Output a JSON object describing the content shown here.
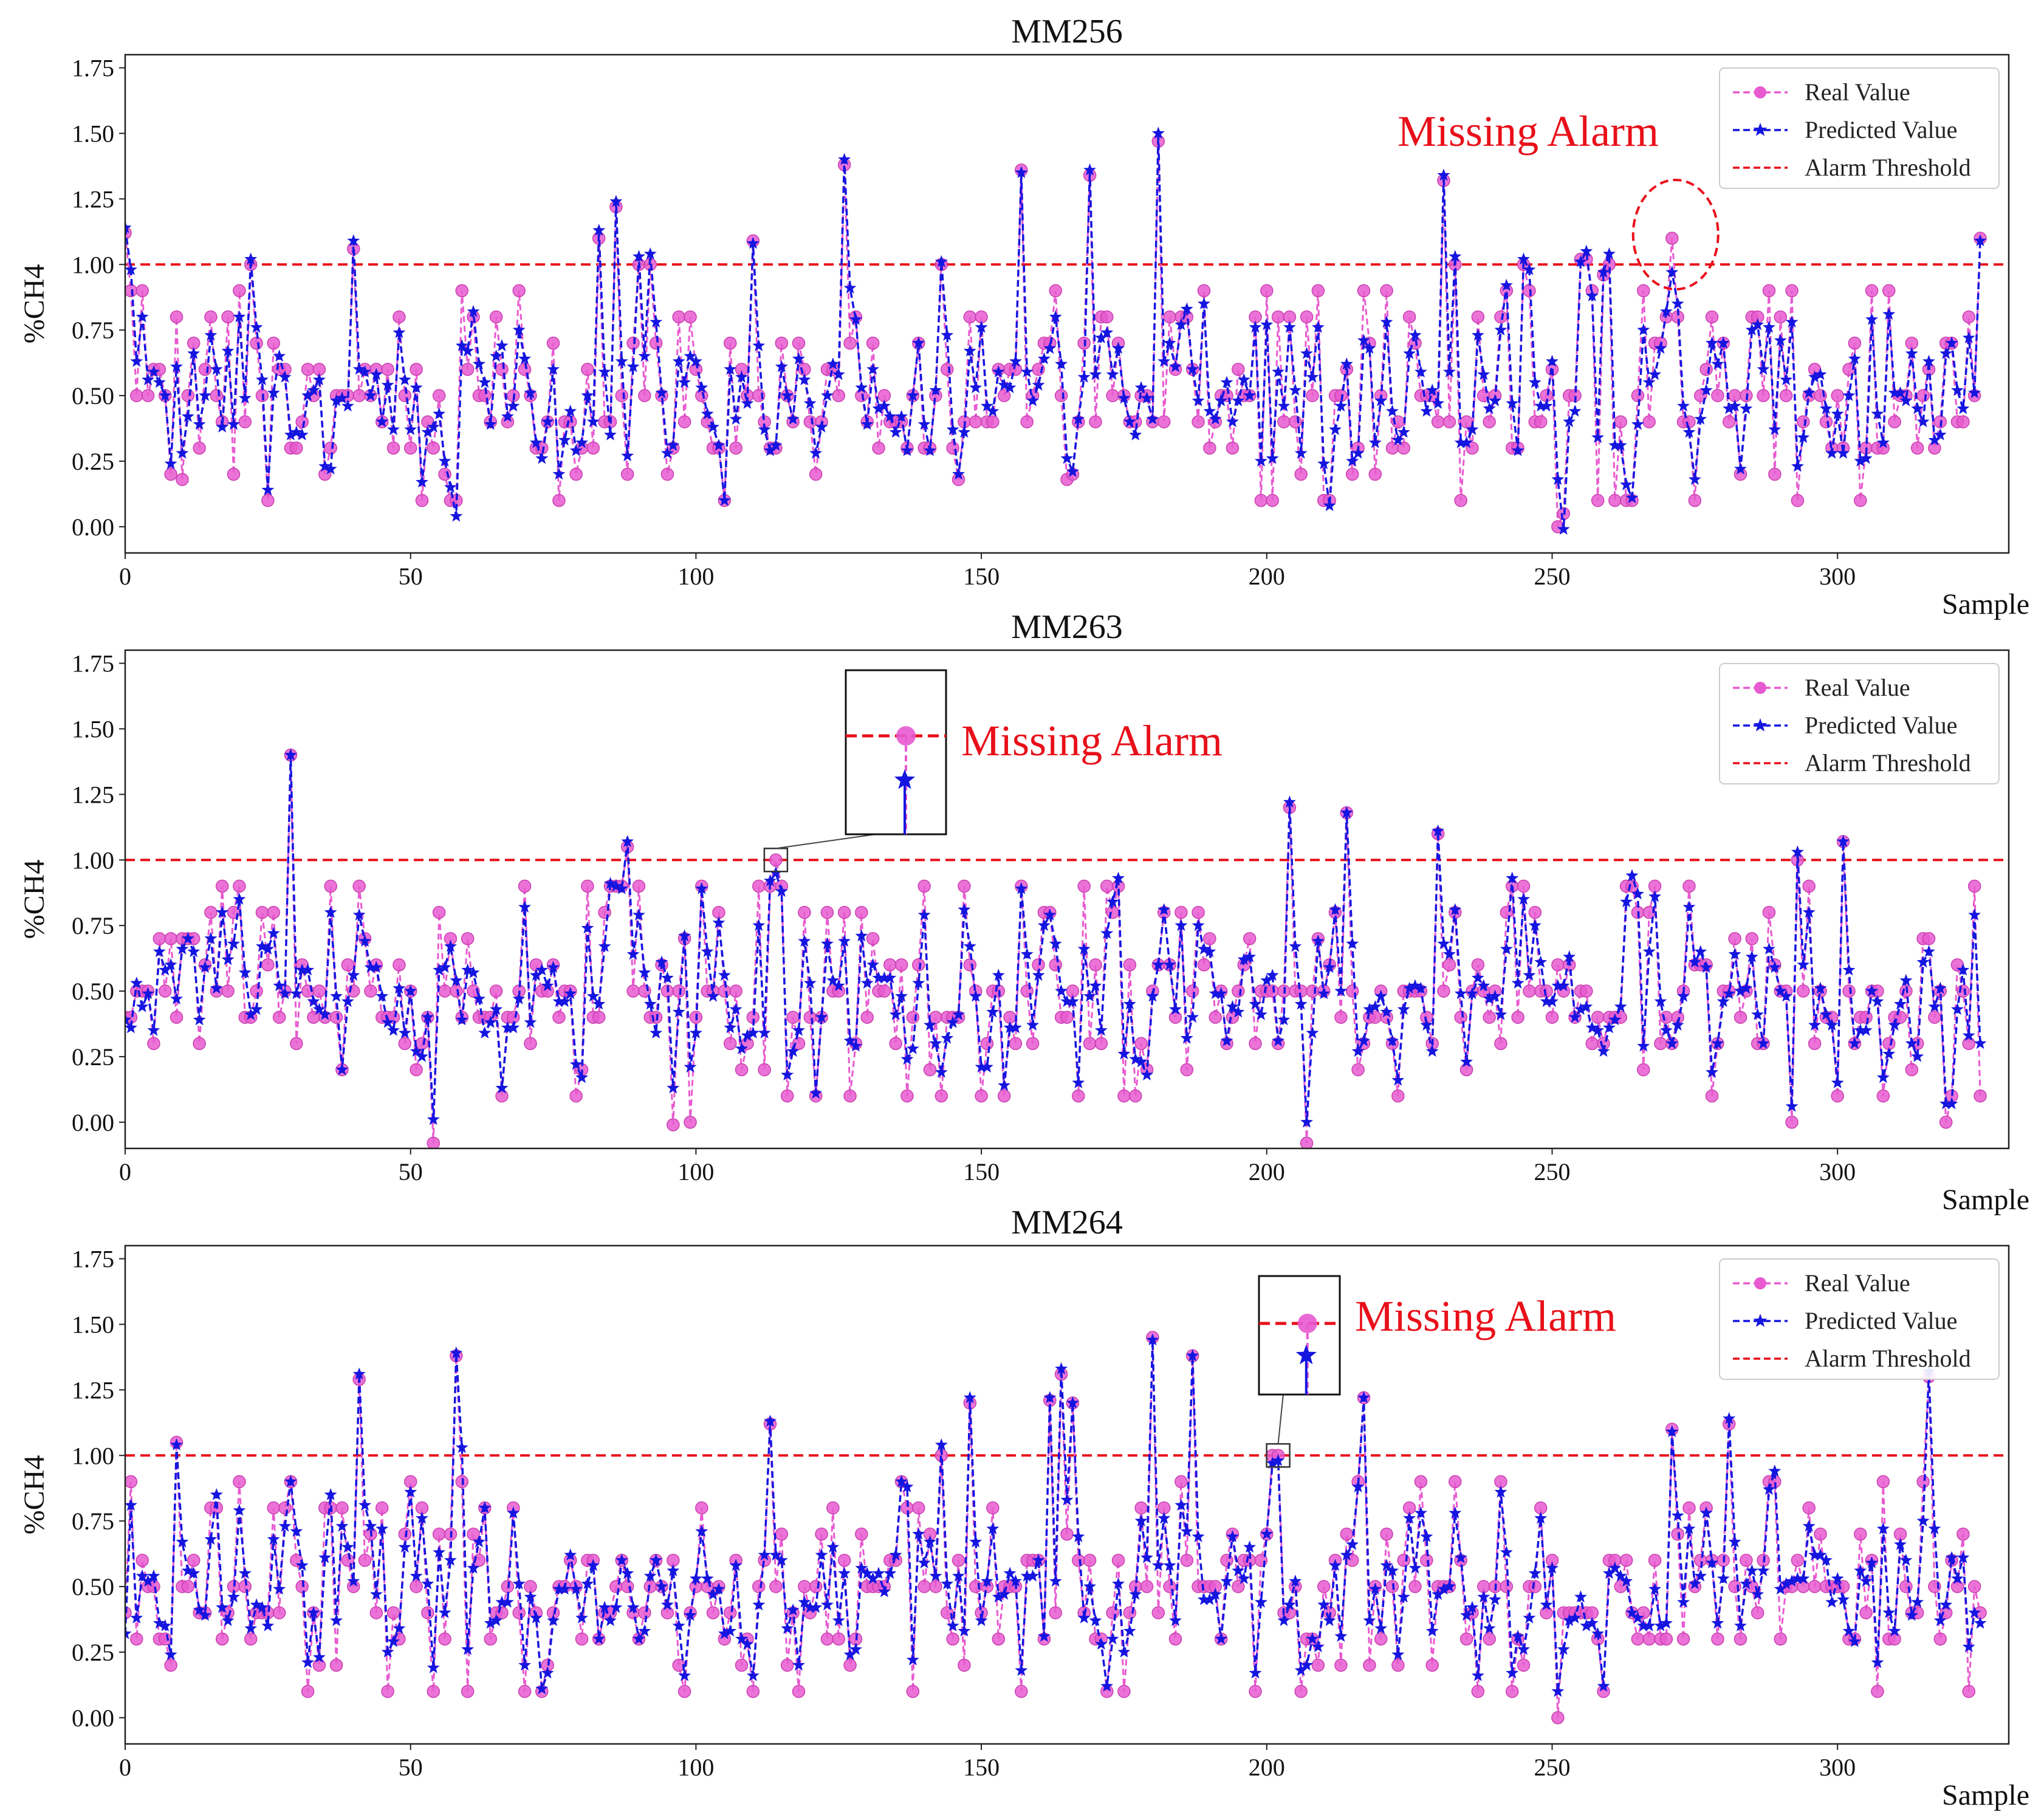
{
  "colors": {
    "real": "#e85ad0",
    "predicted": "#1515e0",
    "threshold": "#e8101a",
    "axis": "#222222"
  },
  "legend": {
    "real": "Real Value",
    "predicted": "Predicted Value",
    "threshold": "Alarm Threshold"
  },
  "chart_data": [
    {
      "type": "line",
      "title": "MM256",
      "xlabel": "Sample",
      "ylabel": "%CH4",
      "xlim": [
        0,
        330
      ],
      "ylim": [
        -0.1,
        1.8
      ],
      "xticks": [
        0,
        50,
        100,
        150,
        200,
        250,
        300
      ],
      "yticks": [
        "0.00",
        "0.25",
        "0.50",
        "0.75",
        "1.00",
        "1.25",
        "1.50",
        "1.75"
      ],
      "threshold": 1.0,
      "annotation": {
        "text": "Missing Alarm",
        "style": "ellipse",
        "target_x": 271,
        "target_y": 1.1
      },
      "seed": 256,
      "n": 326,
      "peaks": [
        [
          0,
          1.12
        ],
        [
          22,
          1.0
        ],
        [
          40,
          1.06
        ],
        [
          83,
          1.1
        ],
        [
          86,
          1.22
        ],
        [
          90,
          1.0
        ],
        [
          92,
          1.0
        ],
        [
          110,
          1.09
        ],
        [
          126,
          1.38
        ],
        [
          143,
          1.0
        ],
        [
          157,
          1.36
        ],
        [
          169,
          1.34
        ],
        [
          181,
          1.47
        ],
        [
          231,
          1.32
        ],
        [
          233,
          1.0
        ],
        [
          245,
          1.0
        ],
        [
          255,
          1.02
        ],
        [
          256,
          1.02
        ],
        [
          259,
          0.96
        ],
        [
          260,
          1.0
        ],
        [
          271,
          1.1
        ],
        [
          325,
          1.1
        ]
      ],
      "dips": [
        [
          10,
          0.18
        ],
        [
          52,
          0.1
        ],
        [
          57,
          0.1
        ],
        [
          146,
          0.18
        ],
        [
          165,
          0.18
        ],
        [
          251,
          0.0
        ],
        [
          252,
          0.05
        ]
      ],
      "overrides": [
        [
          270,
          0.8,
          0.82
        ],
        [
          271,
          1.1,
          0.97
        ],
        [
          272,
          0.8,
          0.85
        ]
      ],
      "series": [
        {
          "name": "Real Value",
          "values": []
        },
        {
          "name": "Predicted Value",
          "values": []
        }
      ]
    },
    {
      "type": "line",
      "title": "MM263",
      "xlabel": "Sample",
      "ylabel": "%CH4",
      "xlim": [
        0,
        330
      ],
      "ylim": [
        -0.1,
        1.8
      ],
      "xticks": [
        0,
        50,
        100,
        150,
        200,
        250,
        300
      ],
      "yticks": [
        "0.00",
        "0.25",
        "0.50",
        "0.75",
        "1.00",
        "1.25",
        "1.50",
        "1.75"
      ],
      "threshold": 1.0,
      "annotation": {
        "text": "Missing Alarm",
        "style": "zoom",
        "target_x": 114,
        "target_y": 1.0
      },
      "seed": 263,
      "n": 326,
      "peaks": [
        [
          29,
          1.4
        ],
        [
          88,
          1.05
        ],
        [
          101,
          0.9
        ],
        [
          157,
          0.9
        ],
        [
          204,
          1.2
        ],
        [
          214,
          1.18
        ],
        [
          230,
          1.1
        ],
        [
          293,
          1.0
        ],
        [
          301,
          1.07
        ]
      ],
      "dips": [
        [
          54,
          -0.08
        ],
        [
          207,
          -0.08
        ],
        [
          96,
          -0.01
        ],
        [
          99,
          0.0
        ],
        [
          292,
          0.0
        ],
        [
          319,
          0.0
        ]
      ],
      "overrides": [
        [
          113,
          0.9,
          0.92
        ],
        [
          114,
          1.0,
          0.95
        ],
        [
          115,
          0.9,
          0.88
        ]
      ],
      "series": [
        {
          "name": "Real Value",
          "values": []
        },
        {
          "name": "Predicted Value",
          "values": []
        }
      ]
    },
    {
      "type": "line",
      "title": "MM264",
      "xlabel": "Sample",
      "ylabel": "%CH4",
      "xlim": [
        0,
        330
      ],
      "ylim": [
        -0.1,
        1.8
      ],
      "xticks": [
        0,
        50,
        100,
        150,
        200,
        250,
        300
      ],
      "yticks": [
        "0.00",
        "0.25",
        "0.50",
        "0.75",
        "1.00",
        "1.25",
        "1.50",
        "1.75"
      ],
      "threshold": 1.0,
      "annotation": {
        "text": "Missing Alarm",
        "style": "zoom",
        "target_x": 202,
        "target_y": 1.0
      },
      "seed": 264,
      "n": 326,
      "peaks": [
        [
          9,
          1.05
        ],
        [
          41,
          1.29
        ],
        [
          58,
          1.38
        ],
        [
          113,
          1.12
        ],
        [
          143,
          1.0
        ],
        [
          148,
          1.2
        ],
        [
          162,
          1.21
        ],
        [
          164,
          1.31
        ],
        [
          166,
          1.2
        ],
        [
          180,
          1.45
        ],
        [
          187,
          1.38
        ],
        [
          217,
          1.22
        ],
        [
          271,
          1.1
        ],
        [
          281,
          1.12
        ],
        [
          316,
          1.3
        ]
      ],
      "dips": [
        [
          251,
          0.0
        ],
        [
          54,
          0.1
        ],
        [
          73,
          0.1
        ],
        [
          138,
          0.1
        ],
        [
          307,
          0.1
        ]
      ],
      "overrides": [
        [
          201,
          1.0,
          0.97
        ],
        [
          202,
          1.0,
          0.98
        ]
      ],
      "series": [
        {
          "name": "Real Value",
          "values": []
        },
        {
          "name": "Predicted Value",
          "values": []
        }
      ]
    }
  ]
}
